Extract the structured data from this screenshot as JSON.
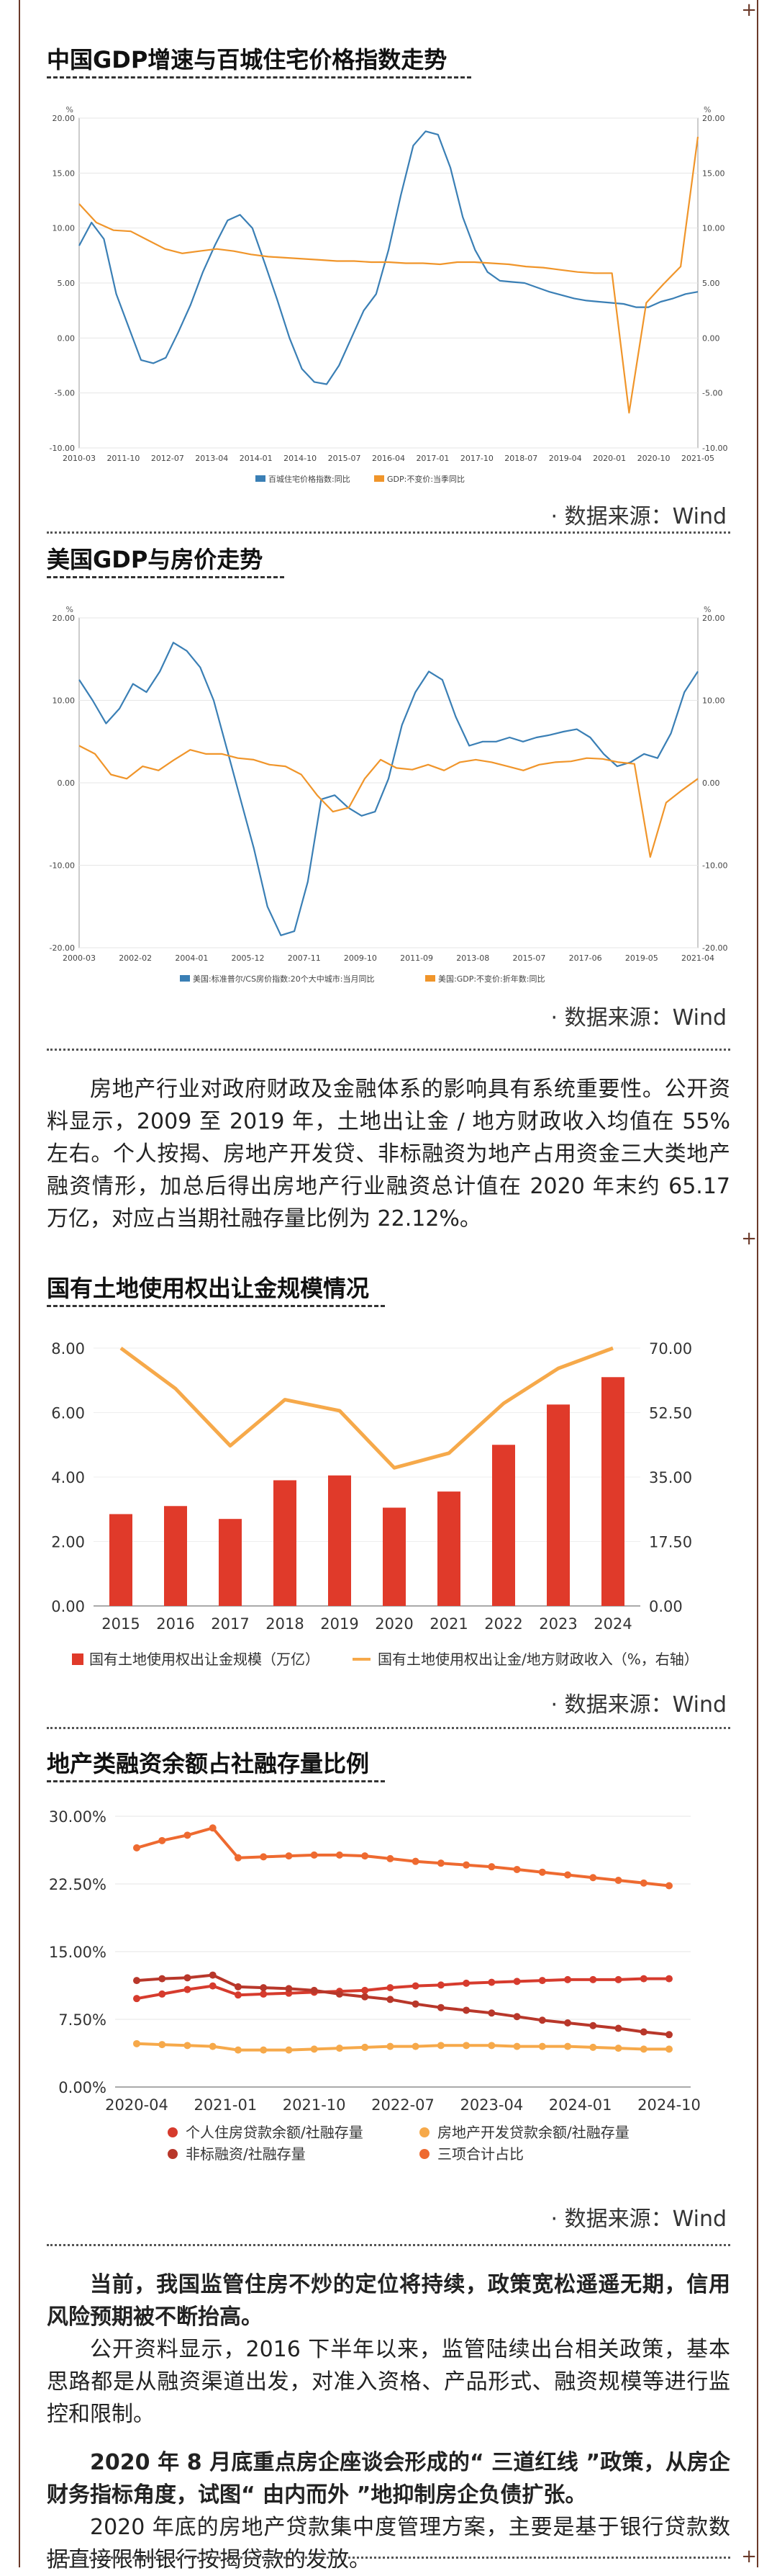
{
  "sections": {
    "s1_title": "中国GDP增速与百城住宅价格指数走势",
    "s2_title": "美国GDP与房价走势",
    "s3_title": "国有土地使用权出让金规模情况",
    "s4_title": "地产类融资余额占社融存量比例",
    "source": "· 数据来源：Wind"
  },
  "paragraphs": {
    "p1": "房地产行业对政府财政及金融体系的影响具有系统重要性。公开资料显示，2009 至 2019 年，土地出让金 / 地方财政收入均值在 55% 左右。个人按揭、房地产开发贷、非标融资为地产占用资金三大类地产融资情形，加总后得出房地产行业融资总计值在 2020 年末约 65.17 万亿，对应占当期社融存量比例为 22.12%。",
    "p2": "当前，我国监管住房不炒的定位将持续，政策宽松遥遥无期，信用风险预期被不断抬高。",
    "p3": "公开资料显示，2016 下半年以来，监管陆续出台相关政策，基本思路都是从融资渠道出发，对准入资格、产品形式、融资规模等进行监控和限制。",
    "p4": "2020 年 8 月底重点房企座谈会形成的“ 三道红线 ”政策，从房企财务指标角度，试图“ 由内而外 ”地抑制房企负债扩张。",
    "p5": "2020 年底的房地产贷款集中度管理方案，主要是基于银行贷款数据直接限制银行按揭贷款的发放。"
  },
  "colors": {
    "blue": "#3a7fb5",
    "orange": "#f0952a",
    "red": "#e03a2a",
    "light_orange": "#f6a94a",
    "dark_red": "#b8372a",
    "mid_orange": "#ee6a30",
    "frame": "#6b3a2a"
  },
  "chart_data": [
    {
      "id": "c1",
      "type": "line",
      "left_unit": "%",
      "right_unit": "%",
      "y_ticks": [
        "20.00",
        "15.00",
        "10.00",
        "5.00",
        "0.00",
        "-5.00",
        "-10.00"
      ],
      "ylim": [
        -10,
        20
      ],
      "x_ticks": [
        "2010-03",
        "2011-10",
        "2012-07",
        "2013-04",
        "2014-01",
        "2014-10",
        "2015-07",
        "2016-04",
        "2017-01",
        "2017-10",
        "2018-07",
        "2019-04",
        "2020-01",
        "2020-10",
        "2021-05"
      ],
      "series": [
        {
          "name": "百城住宅价格指数:同比",
          "axis": "left",
          "values": [
            8.4,
            10.5,
            9.0,
            4.0,
            1.0,
            -2.0,
            -2.3,
            -1.8,
            0.5,
            3.0,
            6.0,
            8.5,
            10.7,
            11.2,
            10.0,
            6.8,
            3.5,
            0.0,
            -2.8,
            -4.0,
            -4.2,
            -2.5,
            0.0,
            2.5,
            4.0,
            8.0,
            13.0,
            17.5,
            18.8,
            18.5,
            15.5,
            11.0,
            8.0,
            6.0,
            5.2,
            5.1,
            5.0,
            4.6,
            4.2,
            3.9,
            3.6,
            3.4,
            3.3,
            3.2,
            3.1,
            2.8,
            2.8,
            3.3,
            3.6,
            4.0,
            4.2
          ]
        },
        {
          "name": "GDP:不变价:当季同比",
          "axis": "right",
          "values": [
            12.2,
            10.5,
            9.8,
            9.7,
            8.9,
            8.1,
            7.7,
            7.9,
            8.1,
            7.9,
            7.6,
            7.4,
            7.3,
            7.2,
            7.1,
            7.0,
            7.0,
            6.9,
            6.9,
            6.8,
            6.8,
            6.7,
            6.9,
            6.9,
            6.8,
            6.7,
            6.5,
            6.4,
            6.2,
            6.0,
            5.9,
            5.9,
            -6.8,
            3.2,
            4.9,
            6.5,
            18.3
          ]
        }
      ]
    },
    {
      "id": "c2",
      "type": "line",
      "left_unit": "%",
      "right_unit": "%",
      "y_ticks": [
        "20.00",
        "10.00",
        "0.00",
        "-10.00",
        "-20.00"
      ],
      "ylim": [
        -20,
        20
      ],
      "x_ticks": [
        "2000-03",
        "2002-02",
        "2004-01",
        "2005-12",
        "2007-11",
        "2009-10",
        "2011-09",
        "2013-08",
        "2015-07",
        "2017-06",
        "2019-05",
        "2021-04"
      ],
      "series": [
        {
          "name": "美国:标准普尔/CS房价指数:20个大中城市:当月同比",
          "axis": "left",
          "values": [
            12.5,
            10.0,
            7.2,
            9.0,
            12.0,
            11.0,
            13.5,
            17.0,
            16.0,
            14.0,
            10.0,
            4.0,
            -2.0,
            -8.0,
            -15.0,
            -18.5,
            -18.0,
            -12.0,
            -2.0,
            -1.5,
            -3.0,
            -4.0,
            -3.5,
            0.5,
            7.0,
            11.0,
            13.5,
            12.5,
            8.0,
            4.5,
            5.0,
            5.0,
            5.5,
            5.0,
            5.5,
            5.8,
            6.2,
            6.5,
            5.5,
            3.5,
            2.0,
            2.5,
            3.5,
            3.0,
            6.0,
            11.0,
            13.5
          ]
        },
        {
          "name": "美国:GDP:不变价:折年数:同比",
          "axis": "right",
          "values": [
            4.5,
            3.5,
            1.0,
            0.5,
            2.0,
            1.5,
            2.8,
            4.0,
            3.5,
            3.5,
            3.0,
            2.8,
            2.2,
            2.0,
            1.0,
            -1.5,
            -3.5,
            -3.0,
            0.5,
            2.8,
            1.8,
            1.6,
            2.2,
            1.5,
            2.5,
            2.8,
            2.5,
            2.0,
            1.5,
            2.2,
            2.5,
            2.6,
            3.0,
            2.9,
            2.5,
            2.3,
            -9.0,
            -2.4,
            -0.9,
            0.5
          ]
        }
      ]
    },
    {
      "id": "c3",
      "type": "bar",
      "categories": [
        "2015",
        "2016",
        "2017",
        "2018",
        "2019",
        "2020",
        "2021",
        "2022",
        "2023",
        "2024"
      ],
      "y_ticks": [
        "8.00",
        "6.00",
        "4.00",
        "2.00",
        "0.00"
      ],
      "y2_ticks": [
        "70.00",
        "52.50",
        "35.00",
        "17.50",
        "0.00"
      ],
      "ylim": [
        0,
        8
      ],
      "y2lim": [
        0,
        70
      ],
      "series": [
        {
          "name": "国有土地使用权出让金规模（万亿）",
          "axis": "left",
          "values": [
            2.85,
            3.1,
            2.7,
            3.9,
            4.05,
            3.05,
            3.55,
            5.0,
            6.25,
            7.1
          ]
        },
        {
          "name": "国有土地使用权出让金/地方财政收入（%，右轴）",
          "axis": "right",
          "values": [
            70.0,
            59.0,
            43.5,
            56.0,
            53.0,
            37.5,
            41.5,
            55.0,
            64.5,
            70.0
          ]
        }
      ]
    },
    {
      "id": "c4",
      "type": "line",
      "y_ticks": [
        "30.00%",
        "22.50%",
        "15.00%",
        "7.50%",
        "0.00%"
      ],
      "ylim": [
        0,
        30
      ],
      "x_ticks": [
        "2020-04",
        "2021-01",
        "2021-10",
        "2022-07",
        "2023-04",
        "2024-01",
        "2024-10"
      ],
      "series": [
        {
          "name": "个人住房贷款余额/社融存量",
          "axis": "left",
          "values": [
            9.8,
            10.3,
            10.8,
            11.2,
            10.2,
            10.3,
            10.4,
            10.5,
            10.6,
            10.7,
            11.0,
            11.2,
            11.3,
            11.5,
            11.6,
            11.7,
            11.8,
            11.9,
            11.9,
            11.9,
            12.0,
            12.0
          ]
        },
        {
          "name": "房地产开发贷款余额/社融存量",
          "axis": "left",
          "values": [
            4.8,
            4.7,
            4.6,
            4.5,
            4.1,
            4.1,
            4.1,
            4.2,
            4.3,
            4.4,
            4.5,
            4.5,
            4.6,
            4.6,
            4.6,
            4.5,
            4.5,
            4.5,
            4.4,
            4.3,
            4.2,
            4.2
          ]
        },
        {
          "name": "非标融资/社融存量",
          "axis": "left",
          "values": [
            11.8,
            12.0,
            12.1,
            12.4,
            11.1,
            11.0,
            10.9,
            10.7,
            10.3,
            10.0,
            9.7,
            9.2,
            8.8,
            8.5,
            8.2,
            7.8,
            7.4,
            7.1,
            6.8,
            6.5,
            6.1,
            5.8
          ]
        },
        {
          "name": "三项合计占比",
          "axis": "left",
          "values": [
            26.5,
            27.3,
            27.9,
            28.7,
            25.4,
            25.5,
            25.6,
            25.7,
            25.7,
            25.6,
            25.3,
            25.0,
            24.8,
            24.6,
            24.4,
            24.1,
            23.8,
            23.5,
            23.2,
            22.9,
            22.6,
            22.3
          ]
        }
      ]
    }
  ]
}
